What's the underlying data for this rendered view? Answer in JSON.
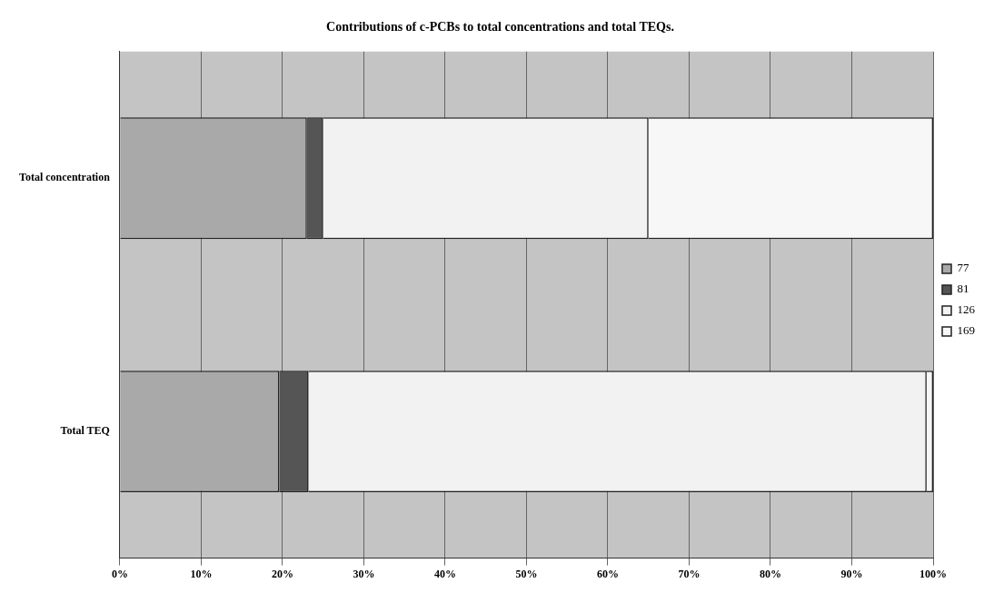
{
  "chart_data": {
    "type": "bar",
    "orientation": "horizontal",
    "stacked": true,
    "title": "Contributions of c-PCBs to total concentrations and total TEQs.",
    "categories": [
      "Total concentration",
      "Total TEQ"
    ],
    "series": [
      {
        "name": "77",
        "color": "#a9a9a9",
        "values": [
          23,
          19.6
        ]
      },
      {
        "name": "81",
        "color": "#555555",
        "values": [
          2,
          3.6
        ]
      },
      {
        "name": "126",
        "color": "#f2f2f2",
        "values": [
          40,
          76
        ]
      },
      {
        "name": "169",
        "color": "#f7f7f7",
        "values": [
          35,
          0.8
        ]
      }
    ],
    "xlim": [
      0,
      100
    ],
    "xticks": [
      {
        "value": 0,
        "label": "0%"
      },
      {
        "value": 10,
        "label": "10%"
      },
      {
        "value": 20,
        "label": "20%"
      },
      {
        "value": 30,
        "label": "30%"
      },
      {
        "value": 40,
        "label": "40%"
      },
      {
        "value": 50,
        "label": "50%"
      },
      {
        "value": 60,
        "label": "60%"
      },
      {
        "value": 70,
        "label": "70%"
      },
      {
        "value": 80,
        "label": "80%"
      },
      {
        "value": 90,
        "label": "90%"
      },
      {
        "value": 100,
        "label": "100%"
      }
    ],
    "grid": "x",
    "legend": "right"
  }
}
